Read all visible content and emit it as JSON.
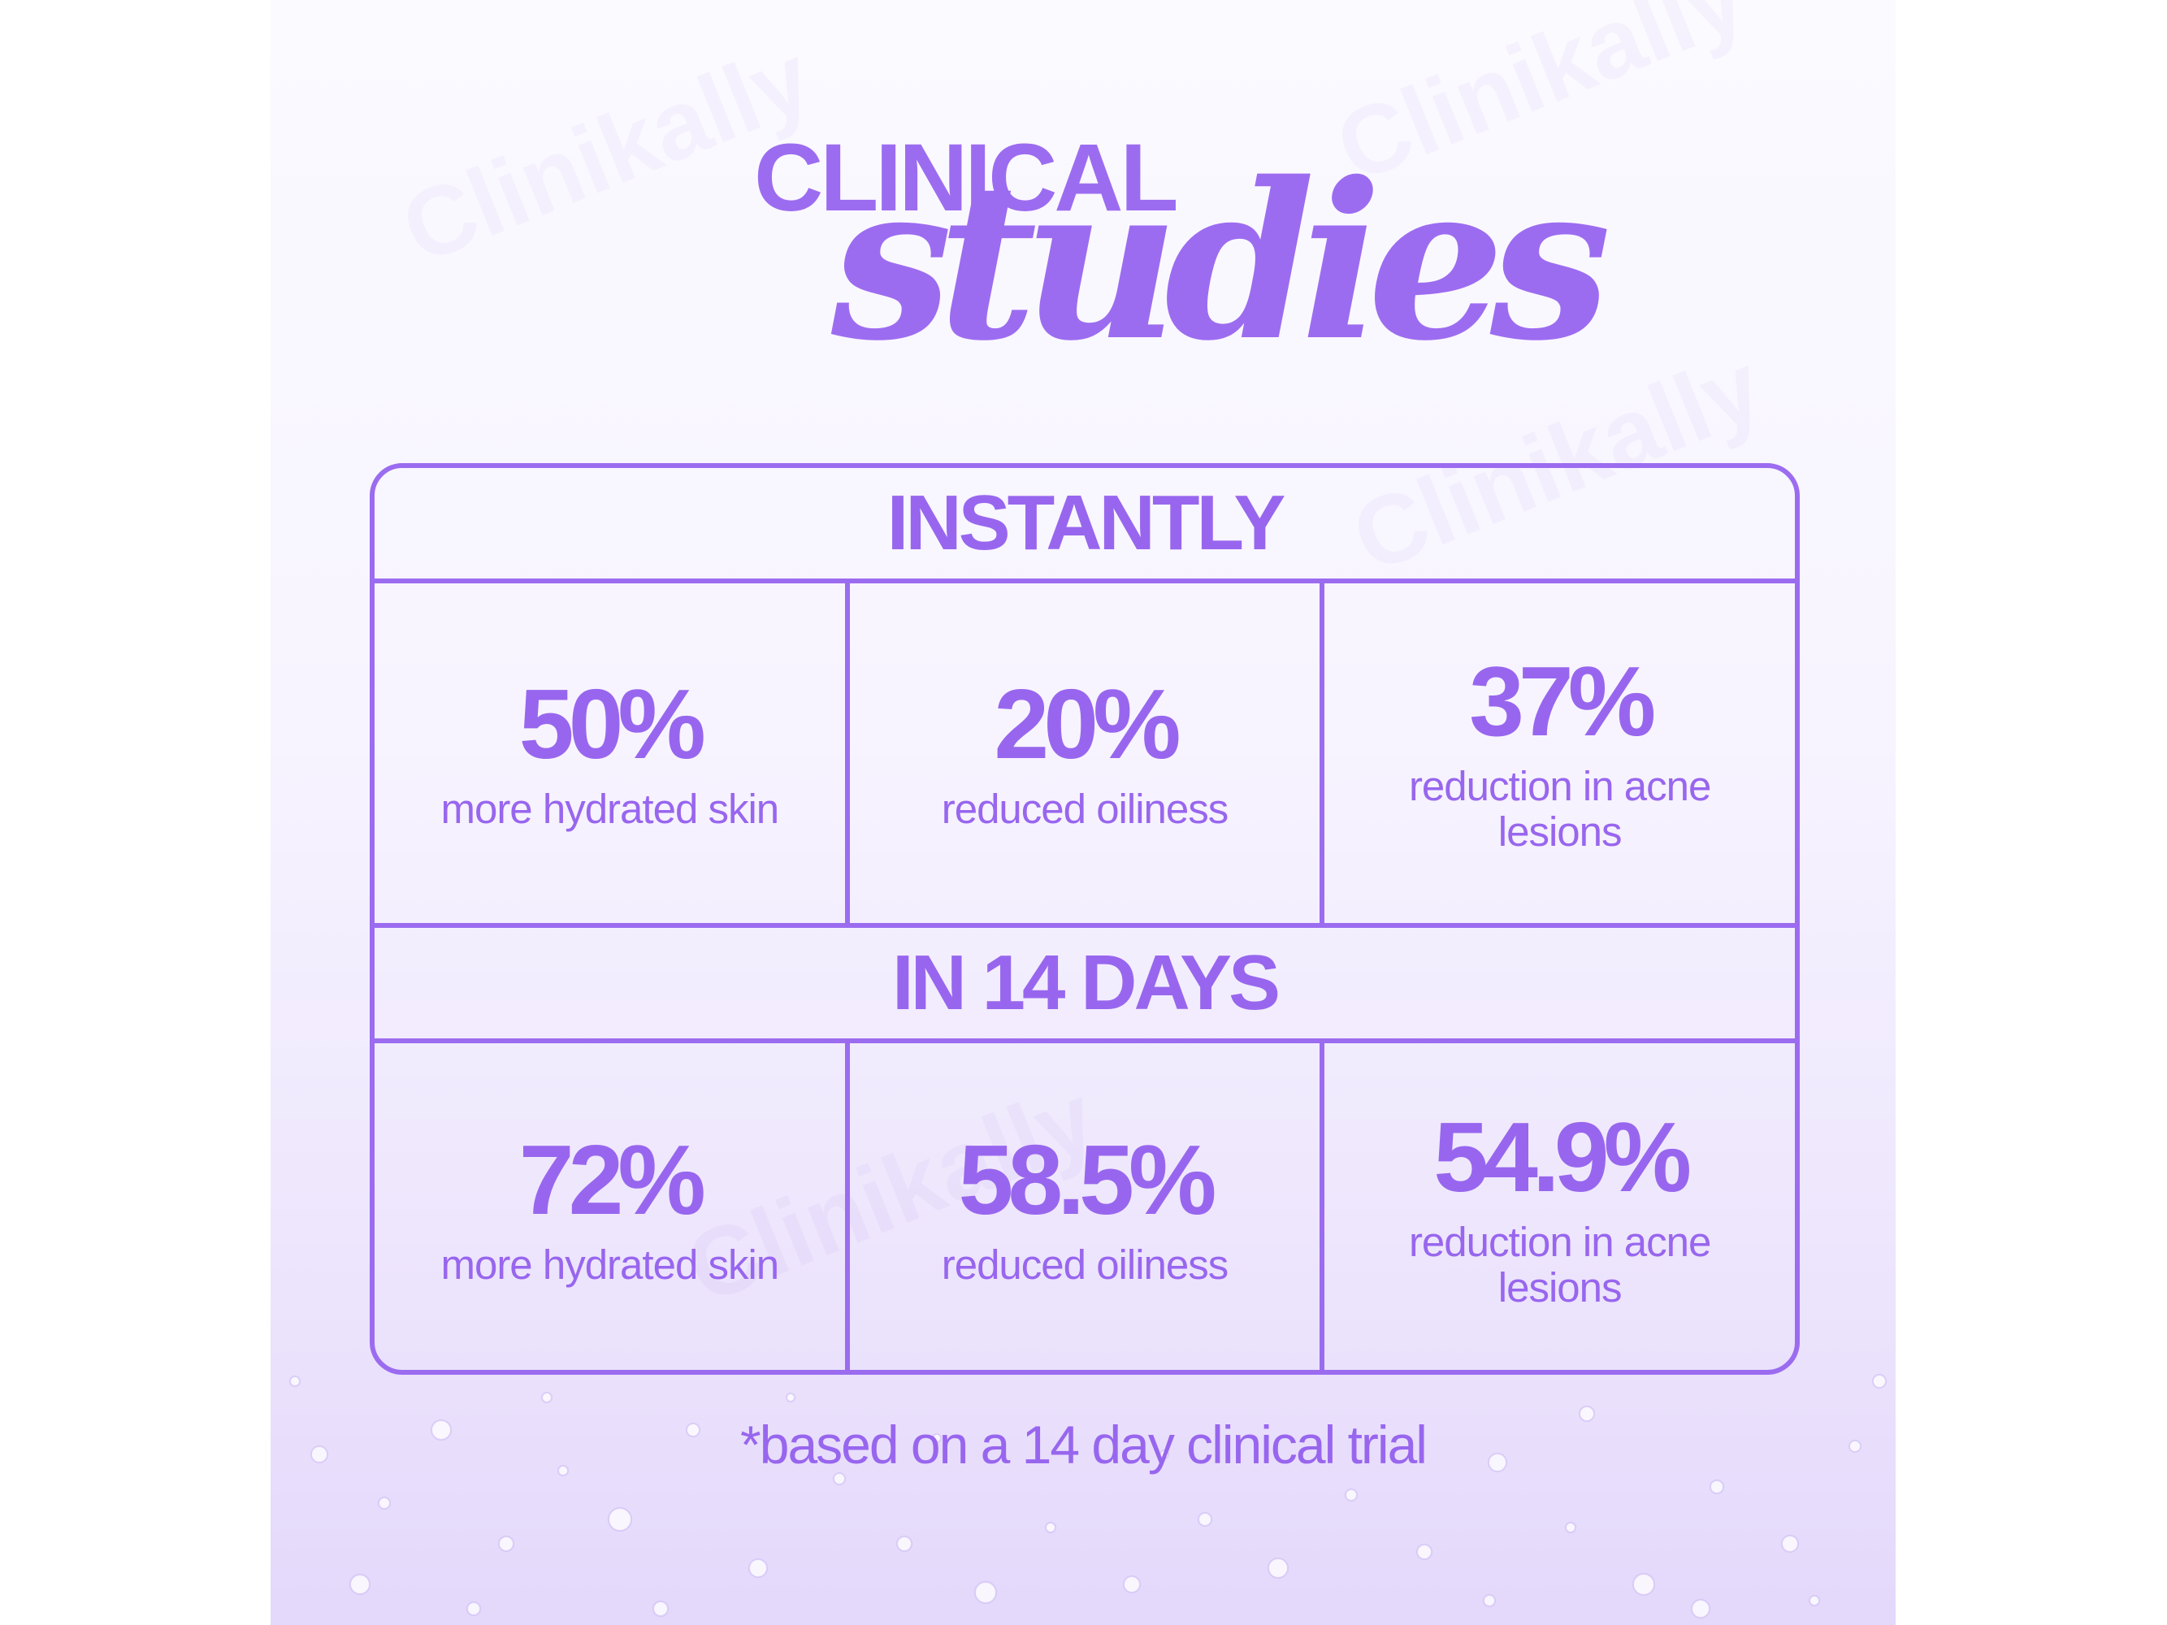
{
  "header": {
    "title_line1": "CLINICAL",
    "title_line2": "studies"
  },
  "watermark_text": "Clinikally",
  "sections": [
    {
      "title": "INSTANTLY",
      "stats": [
        {
          "value": "50%",
          "label": "more hydrated skin"
        },
        {
          "value": "20%",
          "label": "reduced oiliness"
        },
        {
          "value": "37%",
          "label": "reduction in acne lesions"
        }
      ]
    },
    {
      "title": "IN 14 DAYS",
      "stats": [
        {
          "value": "72%",
          "label": "more hydrated skin"
        },
        {
          "value": "58.5%",
          "label": "reduced oiliness"
        },
        {
          "value": "54.9%",
          "label": "reduction in acne lesions"
        }
      ]
    }
  ],
  "footnote": "*based on a 14 day clinical trial",
  "colors": {
    "accent": "#9b6cf0",
    "background_top": "#fbfaff",
    "background_bottom": "#e4d8fb"
  }
}
